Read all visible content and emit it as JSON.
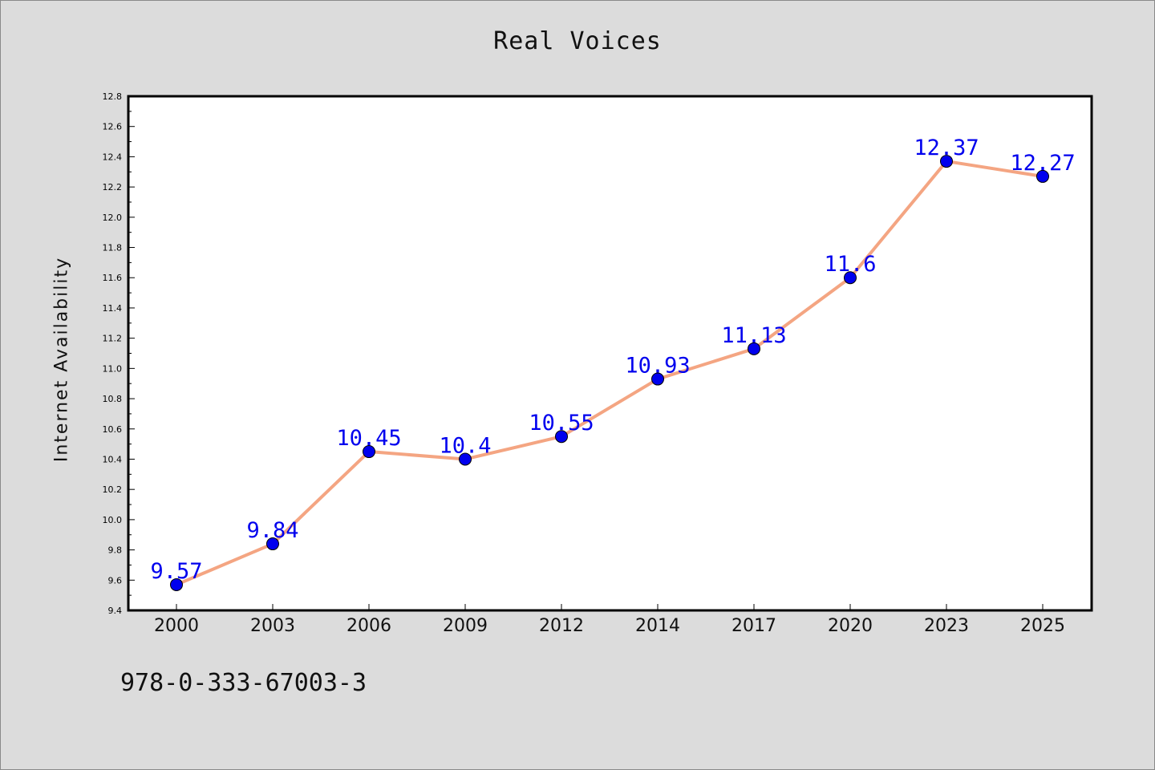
{
  "chart_data": {
    "type": "line",
    "title": "Real Voices",
    "xlabel": "",
    "ylabel": "Internet Availability",
    "categories": [
      "2000",
      "2003",
      "2006",
      "2009",
      "2012",
      "2014",
      "2017",
      "2020",
      "2023",
      "2025"
    ],
    "series": [
      {
        "values": [
          9.57,
          9.84,
          10.45,
          10.4,
          10.55,
          10.93,
          11.13,
          11.6,
          12.37,
          12.27
        ]
      }
    ],
    "data_labels": [
      "9.57",
      "9.84",
      "10.45",
      "10.4",
      "10.55",
      "10.93",
      "11.13",
      "11.6",
      "12.37",
      "12.27"
    ],
    "ylim": [
      9.4,
      12.8
    ],
    "yticks": [
      "9.4",
      "9.6",
      "9.8",
      "10.0",
      "10.2",
      "10.4",
      "10.6",
      "10.8",
      "11.0",
      "11.2",
      "11.4",
      "11.6",
      "11.8",
      "12.0",
      "12.2",
      "12.4",
      "12.6",
      "12.8"
    ],
    "grid": false,
    "legend": "none",
    "colors": {
      "line": "#f4a582",
      "marker": "#0000ee",
      "label": "#0000ee"
    }
  },
  "footer": {
    "code": "978-0-333-67003-3"
  }
}
